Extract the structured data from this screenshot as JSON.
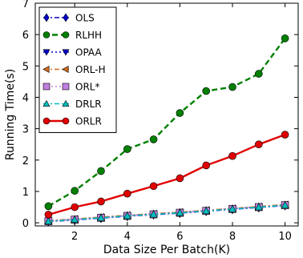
{
  "chart_data": {
    "type": "line",
    "xlabel": "Data Size Per Batch(K)",
    "ylabel": "Running Time(s)",
    "xlim": [
      0.5,
      10.5
    ],
    "ylim": [
      -0.1,
      7
    ],
    "xticks": [
      2,
      4,
      6,
      8,
      10
    ],
    "yticks": [
      0,
      1,
      2,
      3,
      4,
      5,
      6,
      7
    ],
    "grid": false,
    "legend_position": "top-left",
    "x": [
      1,
      2,
      3,
      4,
      5,
      6,
      7,
      8,
      9,
      10
    ],
    "series": [
      {
        "name": "OLS",
        "color": "#0000cc",
        "marker": "diamond",
        "line": "dashdot",
        "values": [
          0.04,
          0.09,
          0.15,
          0.21,
          0.26,
          0.31,
          0.37,
          0.43,
          0.49,
          0.55
        ]
      },
      {
        "name": "RLHH",
        "color": "#008000",
        "marker": "circle",
        "line": "dashed",
        "values": [
          0.53,
          1.02,
          1.65,
          2.35,
          2.66,
          3.5,
          4.2,
          4.33,
          4.75,
          5.88
        ]
      },
      {
        "name": "OPAA",
        "color": "#0000cc",
        "marker": "triangle-down",
        "line": "dotted",
        "values": [
          0.06,
          0.11,
          0.17,
          0.23,
          0.28,
          0.33,
          0.39,
          0.45,
          0.51,
          0.57
        ]
      },
      {
        "name": "ORL-H",
        "color": "#d2691e",
        "marker": "triangle-left",
        "line": "dashdot",
        "values": [
          0.07,
          0.12,
          0.18,
          0.24,
          0.29,
          0.34,
          0.4,
          0.46,
          0.52,
          0.58
        ]
      },
      {
        "name": "ORL*",
        "color": "#bf7fdf",
        "marker": "square",
        "line": "dotted",
        "values": [
          0.05,
          0.1,
          0.16,
          0.22,
          0.27,
          0.32,
          0.38,
          0.44,
          0.5,
          0.56
        ]
      },
      {
        "name": "DRLR",
        "color": "#00bfbf",
        "marker": "triangle-up",
        "line": "dashdot",
        "values": [
          0.05,
          0.1,
          0.16,
          0.22,
          0.27,
          0.32,
          0.38,
          0.44,
          0.5,
          0.56
        ]
      },
      {
        "name": "ORLR",
        "color": "#e00000",
        "marker": "circle",
        "line": "solid",
        "values": [
          0.26,
          0.5,
          0.68,
          0.93,
          1.17,
          1.42,
          1.83,
          2.13,
          2.5,
          2.81
        ]
      }
    ]
  }
}
